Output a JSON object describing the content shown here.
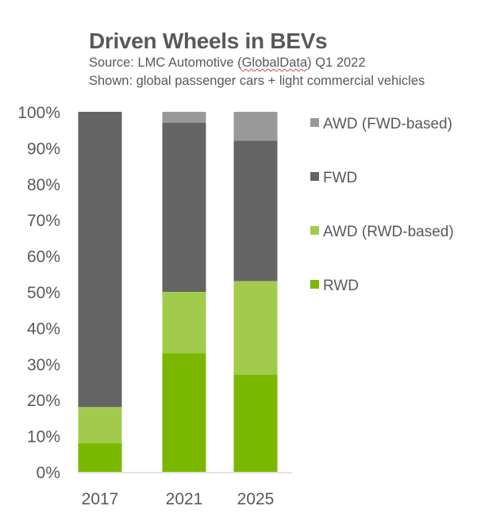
{
  "chart_data": {
    "type": "bar",
    "stacked": true,
    "title": "Driven Wheels in BEVs",
    "subtitle_source_prefix": "Source: LMC Automotive (",
    "subtitle_source_link": "GlobalData",
    "subtitle_source_suffix": ") Q1 2022",
    "subtitle_shown": "Shown: global passenger cars + light commercial vehicles",
    "xlabel": "",
    "ylabel": "",
    "ylim": [
      0,
      100
    ],
    "y_ticks": [
      0,
      10,
      20,
      30,
      40,
      50,
      60,
      70,
      80,
      90,
      100
    ],
    "y_tick_labels": [
      "0%",
      "10%",
      "20%",
      "30%",
      "40%",
      "50%",
      "60%",
      "70%",
      "80%",
      "90%",
      "100%"
    ],
    "grid": false,
    "legend_position": "right",
    "categories": [
      "2017",
      "2021",
      "2025"
    ],
    "series": [
      {
        "name": "RWD",
        "color": "#7AB800",
        "values": [
          8,
          33,
          27
        ]
      },
      {
        "name": "AWD (RWD-based)",
        "color": "#A2CB4E",
        "values": [
          10,
          17,
          26
        ]
      },
      {
        "name": "FWD",
        "color": "#646464",
        "values": [
          82,
          47,
          39
        ]
      },
      {
        "name": "AWD (FWD-based)",
        "color": "#999999",
        "values": [
          0,
          3,
          8
        ]
      }
    ],
    "legend_order": [
      "AWD (FWD-based)",
      "FWD",
      "AWD (RWD-based)",
      "RWD"
    ]
  }
}
